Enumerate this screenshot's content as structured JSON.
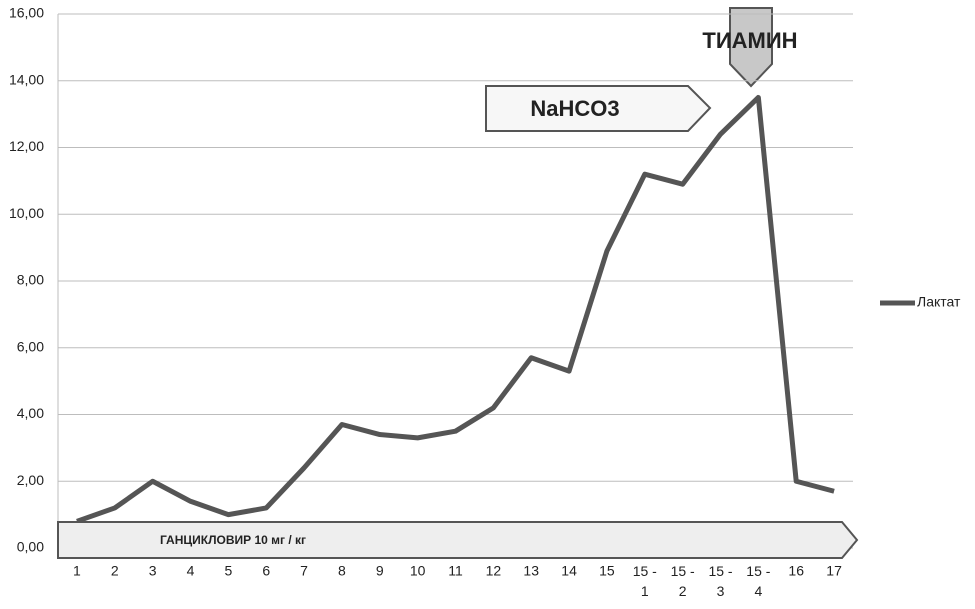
{
  "chart_data": {
    "type": "line",
    "categories": [
      "1",
      "2",
      "3",
      "4",
      "5",
      "6",
      "7",
      "8",
      "9",
      "10",
      "11",
      "12",
      "13",
      "14",
      "15",
      "15 - 1",
      "15 - 2",
      "15 - 3",
      "15 - 4",
      "16",
      "17"
    ],
    "series": [
      {
        "name": "Лактат",
        "color": "#555555",
        "values": [
          0.8,
          1.2,
          2.0,
          1.4,
          1.0,
          1.2,
          2.4,
          3.7,
          3.4,
          3.3,
          3.5,
          4.2,
          5.7,
          5.3,
          8.9,
          11.2,
          10.9,
          12.4,
          13.5,
          2.0,
          1.7
        ]
      }
    ],
    "ylim": [
      0,
      16
    ],
    "yticks": [
      {
        "value": 0,
        "label": "0,00"
      },
      {
        "value": 2,
        "label": "2,00"
      },
      {
        "value": 4,
        "label": "4,00"
      },
      {
        "value": 6,
        "label": "6,00"
      },
      {
        "value": 8,
        "label": "8,00"
      },
      {
        "value": 10,
        "label": "10,00"
      },
      {
        "value": 12,
        "label": "12,00"
      },
      {
        "value": 14,
        "label": "14,00"
      },
      {
        "value": 16,
        "label": "16,00"
      }
    ],
    "grid": true,
    "legend": "right",
    "annotations": [
      "NaHCO3",
      "ТИАМИН",
      "ГАНЦИКЛОВИР 10 мг / кг"
    ]
  }
}
